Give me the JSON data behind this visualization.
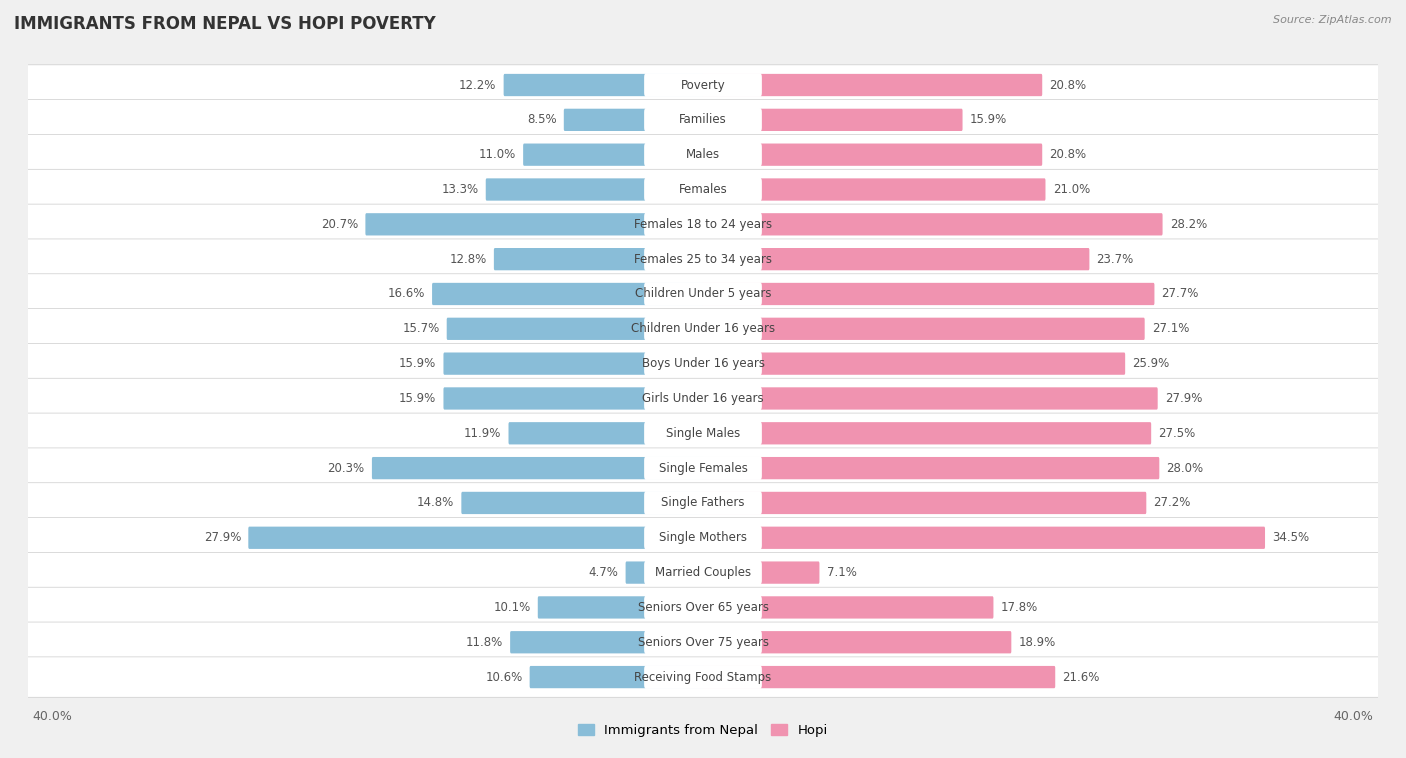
{
  "title": "IMMIGRANTS FROM NEPAL VS HOPI POVERTY",
  "source": "Source: ZipAtlas.com",
  "categories": [
    "Poverty",
    "Families",
    "Males",
    "Females",
    "Females 18 to 24 years",
    "Females 25 to 34 years",
    "Children Under 5 years",
    "Children Under 16 years",
    "Boys Under 16 years",
    "Girls Under 16 years",
    "Single Males",
    "Single Females",
    "Single Fathers",
    "Single Mothers",
    "Married Couples",
    "Seniors Over 65 years",
    "Seniors Over 75 years",
    "Receiving Food Stamps"
  ],
  "nepal_values": [
    12.2,
    8.5,
    11.0,
    13.3,
    20.7,
    12.8,
    16.6,
    15.7,
    15.9,
    15.9,
    11.9,
    20.3,
    14.8,
    27.9,
    4.7,
    10.1,
    11.8,
    10.6
  ],
  "hopi_values": [
    20.8,
    15.9,
    20.8,
    21.0,
    28.2,
    23.7,
    27.7,
    27.1,
    25.9,
    27.9,
    27.5,
    28.0,
    27.2,
    34.5,
    7.1,
    17.8,
    18.9,
    21.6
  ],
  "nepal_color": "#89bdd8",
  "hopi_color": "#f093b0",
  "nepal_label": "Immigrants from Nepal",
  "hopi_label": "Hopi",
  "background_color": "#f0f0f0",
  "row_bg_color": "#ffffff",
  "xlim": 40.0,
  "x_tick_label": "40.0%",
  "title_fontsize": 12,
  "label_fontsize": 8.5,
  "value_fontsize": 8.5
}
